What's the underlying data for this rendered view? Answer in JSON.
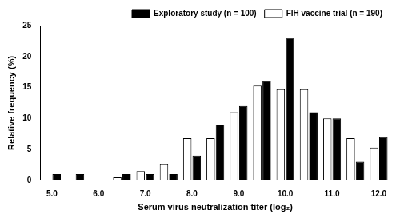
{
  "chart_data": {
    "type": "bar",
    "x_label": "Serum virus neutralization titer (log₂)",
    "y_label": "Relative frequency (%)",
    "categories": [
      "5.0",
      null,
      "6.0",
      null,
      "7.0",
      null,
      "8.0",
      null,
      "9.0",
      null,
      "10.0",
      null,
      "11.0",
      null,
      "12.0"
    ],
    "series": [
      {
        "name": "FIH vaccine trial (n = 190)",
        "color": "#ffffff",
        "values": [
          0,
          0,
          0,
          0.5,
          1.5,
          2.6,
          6.8,
          6.8,
          11,
          15.3,
          14.7,
          14.7,
          10,
          6.8,
          5.3
        ]
      },
      {
        "name": "Exploratory study (n = 100)",
        "color": "#000000",
        "values": [
          1,
          1,
          0,
          1,
          1,
          1,
          4,
          9,
          12,
          16,
          23,
          11,
          10,
          3,
          7
        ]
      }
    ],
    "ylim": [
      0,
      25
    ],
    "yticks": [
      0,
      5,
      10,
      15,
      20,
      25
    ],
    "grid": false,
    "legend": "top-right"
  }
}
